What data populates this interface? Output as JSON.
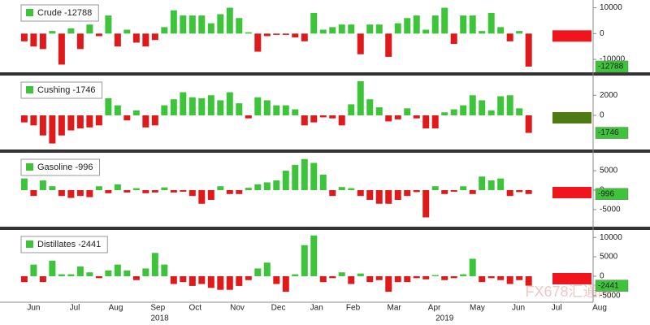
{
  "chart_data": [
    {
      "type": "bar",
      "legend": "Crude -12788",
      "last_label": "-12788",
      "values": [
        -3000,
        -5000,
        -6000,
        1000,
        -12000,
        2000,
        -6000,
        3500,
        -1000,
        7000,
        -5000,
        1500,
        -3500,
        -5000,
        -2500,
        2500,
        9000,
        7000,
        7000,
        7000,
        4000,
        7500,
        10000,
        6000,
        500,
        -7000,
        -1000,
        -500,
        -500,
        -1500,
        -3000,
        8000,
        1500,
        2500,
        3500,
        3500,
        -8000,
        3500,
        3500,
        -9000,
        4000,
        6000,
        7000,
        1500,
        7000,
        10000,
        -4000,
        7000,
        7000,
        1000,
        8000,
        2500,
        -3000,
        1000,
        -12788
      ],
      "positive_color": "#3dc43a",
      "negative_color": "#e0191b",
      "indicator_color": "#f0141c",
      "xlim": [
        -2.6,
        60.9
      ],
      "ylim": [
        -15000,
        13000
      ],
      "yticks": [
        10000,
        0,
        -10000
      ]
    },
    {
      "type": "bar",
      "legend": "Cushing -1746",
      "last_label": "-1746",
      "values": [
        -700,
        -1000,
        -2000,
        -2800,
        -2000,
        -1500,
        -1300,
        -1200,
        -1000,
        1700,
        1000,
        -500,
        500,
        -1200,
        -1000,
        1000,
        1600,
        2300,
        1800,
        1700,
        2000,
        1500,
        2300,
        1200,
        -300,
        1800,
        1500,
        1000,
        1000,
        600,
        -1000,
        -700,
        -200,
        -300,
        -1000,
        1100,
        3400,
        1600,
        800,
        -600,
        -400,
        700,
        -300,
        -1300,
        -1300,
        300,
        600,
        1000,
        2000,
        1500,
        500,
        1900,
        2000,
        700,
        -1746
      ],
      "positive_color": "#3dc43a",
      "negative_color": "#e0191b",
      "indicator_color": "#4f7a12",
      "xlim": [
        -2.6,
        60.9
      ],
      "ylim": [
        -3400,
        3800
      ],
      "yticks": [
        2000,
        0
      ]
    },
    {
      "type": "bar",
      "legend": "Gasoline -996",
      "last_label": "-996",
      "values": [
        3000,
        -1500,
        2500,
        1000,
        -1500,
        -2000,
        -1500,
        -1800,
        1000,
        -800,
        1500,
        -600,
        500,
        -800,
        -600,
        700,
        -600,
        -400,
        -1500,
        -3500,
        -2500,
        1000,
        -1000,
        -1000,
        600,
        1500,
        2000,
        2500,
        5000,
        6500,
        8000,
        7000,
        4000,
        -1500,
        800,
        500,
        -1500,
        -2500,
        -3500,
        -3500,
        -2500,
        -1500,
        -500,
        -7000,
        1000,
        -1000,
        -400,
        1000,
        -1000,
        3500,
        2500,
        3000,
        -1500,
        -500,
        -996
      ],
      "positive_color": "#3dc43a",
      "negative_color": "#e0191b",
      "indicator_color": "#f0141c",
      "xlim": [
        -2.6,
        60.9
      ],
      "ylim": [
        -9400,
        9200
      ],
      "yticks": [
        5000,
        0,
        -5000
      ]
    },
    {
      "type": "bar",
      "legend": "Distillates -2441",
      "last_label": "-2441",
      "values": [
        -1500,
        3000,
        -1500,
        4000,
        500,
        500,
        2500,
        1000,
        -500,
        1500,
        3000,
        1500,
        -1000,
        2000,
        6000,
        3000,
        -2000,
        -1500,
        -2500,
        -2000,
        -3000,
        -3500,
        -3500,
        -2500,
        -1000,
        2000,
        3500,
        -2000,
        -4000,
        500,
        8000,
        10500,
        -1500,
        -500,
        1000,
        -2000,
        700,
        -1500,
        -1000,
        -4000,
        -1500,
        -1500,
        -500,
        -800,
        300,
        -1000,
        -500,
        500,
        4500,
        -1500,
        -500,
        -1000,
        -2000,
        -1000,
        -2441
      ],
      "positive_color": "#3dc43a",
      "negative_color": "#e0191b",
      "indicator_color": "#f0141c",
      "xlim": [
        -2.6,
        60.9
      ],
      "ylim": [
        -6700,
        11500
      ],
      "yticks": [
        10000,
        5000,
        0,
        -5000
      ],
      "xticks": [
        {
          "value": 1,
          "label": "Jun"
        },
        {
          "value": 5.4,
          "label": "Jul"
        },
        {
          "value": 9.8,
          "label": "Aug"
        },
        {
          "value": 14.3,
          "label": "Sep"
        },
        {
          "value": 18.3,
          "label": "Oct"
        },
        {
          "value": 22.8,
          "label": "Nov"
        },
        {
          "value": 27.2,
          "label": "Dec"
        },
        {
          "value": 31.3,
          "label": "Jan"
        },
        {
          "value": 35.2,
          "label": "Feb"
        },
        {
          "value": 39.6,
          "label": "Mar"
        },
        {
          "value": 43.9,
          "label": "Apr"
        },
        {
          "value": 48.5,
          "label": "May"
        },
        {
          "value": 52.9,
          "label": "Jun"
        },
        {
          "value": 57,
          "label": "Jul"
        },
        {
          "value": 61.6,
          "label": "Aug"
        }
      ],
      "year_ticks": [
        {
          "value": 14.5,
          "label": "2018"
        },
        {
          "value": 45,
          "label": "2019"
        }
      ]
    }
  ],
  "watermark": "FX678汇通网"
}
